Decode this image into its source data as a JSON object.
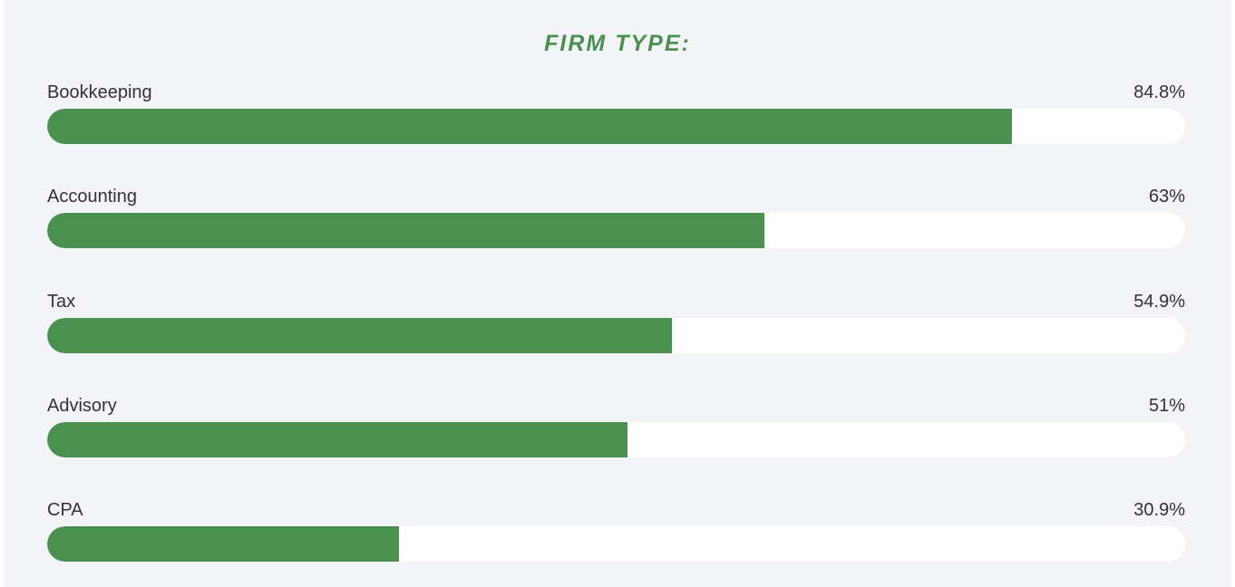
{
  "chart_data": {
    "type": "bar",
    "orientation": "horizontal",
    "title": "FIRM TYPE:",
    "categories": [
      "Bookkeeping",
      "Accounting",
      "Tax",
      "Advisory",
      "CPA"
    ],
    "values": [
      84.8,
      63,
      54.9,
      51,
      30.9
    ],
    "value_labels": [
      "84.8%",
      "63%",
      "54.9%",
      "51%",
      "30.9%"
    ],
    "unit": "%",
    "xlim": [
      0,
      100
    ],
    "grid": false,
    "legend": "none"
  },
  "colors": {
    "bar": "#4a9150",
    "track": "#ffffff",
    "background": "#f3f4f8",
    "title": "#4a9150",
    "text": "#333333"
  }
}
